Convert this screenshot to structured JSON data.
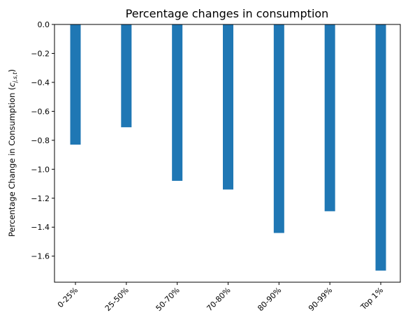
{
  "chart_data": {
    "type": "bar",
    "title": "Percentage changes in consumption",
    "xlabel": "",
    "ylabel": {
      "main": "Percentage Change in Consumption (",
      "symbol": "c",
      "subscript": "j,s,t",
      "close": ")"
    },
    "categories": [
      "0-25%",
      "25-50%",
      "50-70%",
      "70-80%",
      "80-90%",
      "90-99%",
      "Top 1%"
    ],
    "values": [
      -0.83,
      -0.71,
      -1.08,
      -1.14,
      -1.44,
      -1.29,
      -1.7
    ],
    "ylim": [
      -1.78,
      0.0
    ],
    "yticks": [
      0.0,
      -0.2,
      -0.4,
      -0.6,
      -0.8,
      -1.0,
      -1.2,
      -1.4,
      -1.6
    ],
    "ytick_labels": [
      "0.0",
      "−0.2",
      "−0.4",
      "−0.6",
      "−0.8",
      "−1.0",
      "−1.2",
      "−1.4",
      "−1.6"
    ],
    "bar_color": "#1f77b4",
    "grid": false,
    "legend": "none"
  }
}
